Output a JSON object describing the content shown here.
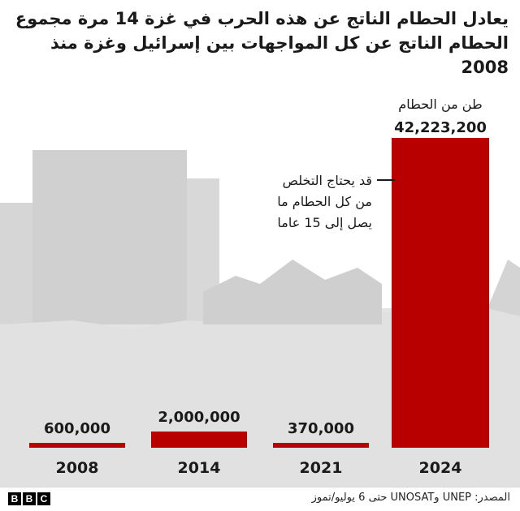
{
  "headline": "يعادل الحطام الناتج عن هذه الحرب في غزة 14 مرة مجموع الحطام الناتج عن كل المواجهات بين إسرائيل وغزة منذ 2008",
  "colors": {
    "bar": "#b80000",
    "text": "#1a1a1a",
    "background_image": "#dcdcdc"
  },
  "chart_data": {
    "type": "bar",
    "categories": [
      "2008",
      "2014",
      "2021",
      "2024"
    ],
    "values": [
      600000,
      2000000,
      370000,
      42223200
    ],
    "value_labels": [
      "600,000",
      "2,000,000",
      "370,000",
      "42,223,200"
    ],
    "unit_label": "طن من الحطام",
    "annotation": "قد يحتاج التخلص من كل الحطام ما يصل إلى 15 عاما",
    "annotation_lines": [
      "قد يحتاج التخلص",
      "من كل الحطام ما",
      "يصل إلى 15 عاما"
    ],
    "ylim": [
      0,
      42223200
    ],
    "grid": false,
    "legend": "none"
  },
  "footer": {
    "logo_letters": [
      "B",
      "B",
      "C"
    ],
    "source": "المصدر: UNEP وUNOSAT حتى 6 يوليو/تموز"
  }
}
